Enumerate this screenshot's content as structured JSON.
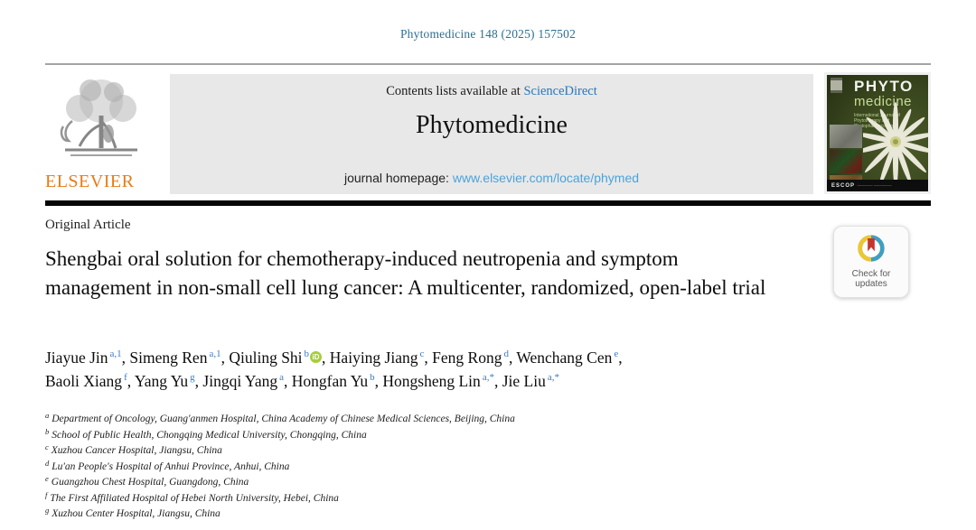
{
  "masthead": {
    "journal_ref": "Phytomedicine 148 (2025) 157502",
    "contents_prefix": "Contents lists available at ",
    "sciencedirect_link": "ScienceDirect",
    "journal_title": "Phytomedicine",
    "homepage_prefix": "journal homepage: ",
    "homepage_link": "www.elsevier.com/locate/phymed",
    "publisher_wordmark": "ELSEVIER"
  },
  "cover": {
    "title_line1": "PHYTO",
    "title_line2": "medicine",
    "subtitle": "International Journal of Phytotherapy and Phytopharmacology",
    "footer": "ESCOP"
  },
  "article": {
    "type_label": "Original Article",
    "title": "Shengbai oral solution for chemotherapy-induced neutropenia and symptom management in non-small cell lung cancer: A multicenter, randomized, open-label trial",
    "crossmark_label": "Check for updates"
  },
  "authors": [
    {
      "name": "Jiayue Jin",
      "sup": "a,1"
    },
    {
      "name": "Simeng Ren",
      "sup": "a,1"
    },
    {
      "name": "Qiuling Shi",
      "sup": "b",
      "orcid": true
    },
    {
      "name": "Haiying Jiang",
      "sup": "c"
    },
    {
      "name": "Feng Rong",
      "sup": "d"
    },
    {
      "name": "Wenchang Cen",
      "sup": "e",
      "break_after": true
    },
    {
      "name": "Baoli Xiang",
      "sup": "f"
    },
    {
      "name": "Yang Yu",
      "sup": "g"
    },
    {
      "name": "Jingqi Yang",
      "sup": "a"
    },
    {
      "name": "Hongfan Yu",
      "sup": "b"
    },
    {
      "name": "Hongsheng Lin",
      "sup": "a,*"
    },
    {
      "name": "Jie Liu",
      "sup": "a,*"
    }
  ],
  "affiliations": [
    {
      "sup": "a",
      "text": "Department of Oncology, Guang'anmen Hospital, China Academy of Chinese Medical Sciences, Beijing, China"
    },
    {
      "sup": "b",
      "text": "School of Public Health, Chongqing Medical University, Chongqing, China"
    },
    {
      "sup": "c",
      "text": "Xuzhou Cancer Hospital, Jiangsu, China"
    },
    {
      "sup": "d",
      "text": "Lu'an People's Hospital of Anhui Province, Anhui, China"
    },
    {
      "sup": "e",
      "text": "Guangzhou Chest Hospital, Guangdong, China"
    },
    {
      "sup": "f",
      "text": "The First Affiliated Hospital of Hebei North University, Hebei, China"
    },
    {
      "sup": "g",
      "text": "Xuzhou Center Hospital, Jiangsu, China"
    }
  ],
  "colors": {
    "journal_ref_blue": "#2d6f94",
    "sciencedirect_link_blue": "#2776bb",
    "homepage_link_blue": "#4aa3dc",
    "author_superscript_blue": "#3e7bc4",
    "elsevier_orange": "#e87b17",
    "orcid_green": "#a6ce39",
    "header_box_gray": "#e8e8e8",
    "cover_green": "#39461e",
    "crossmark_yellow": "#eec62f",
    "crossmark_teal": "#3f9fbe",
    "crossmark_red": "#c5352c"
  }
}
